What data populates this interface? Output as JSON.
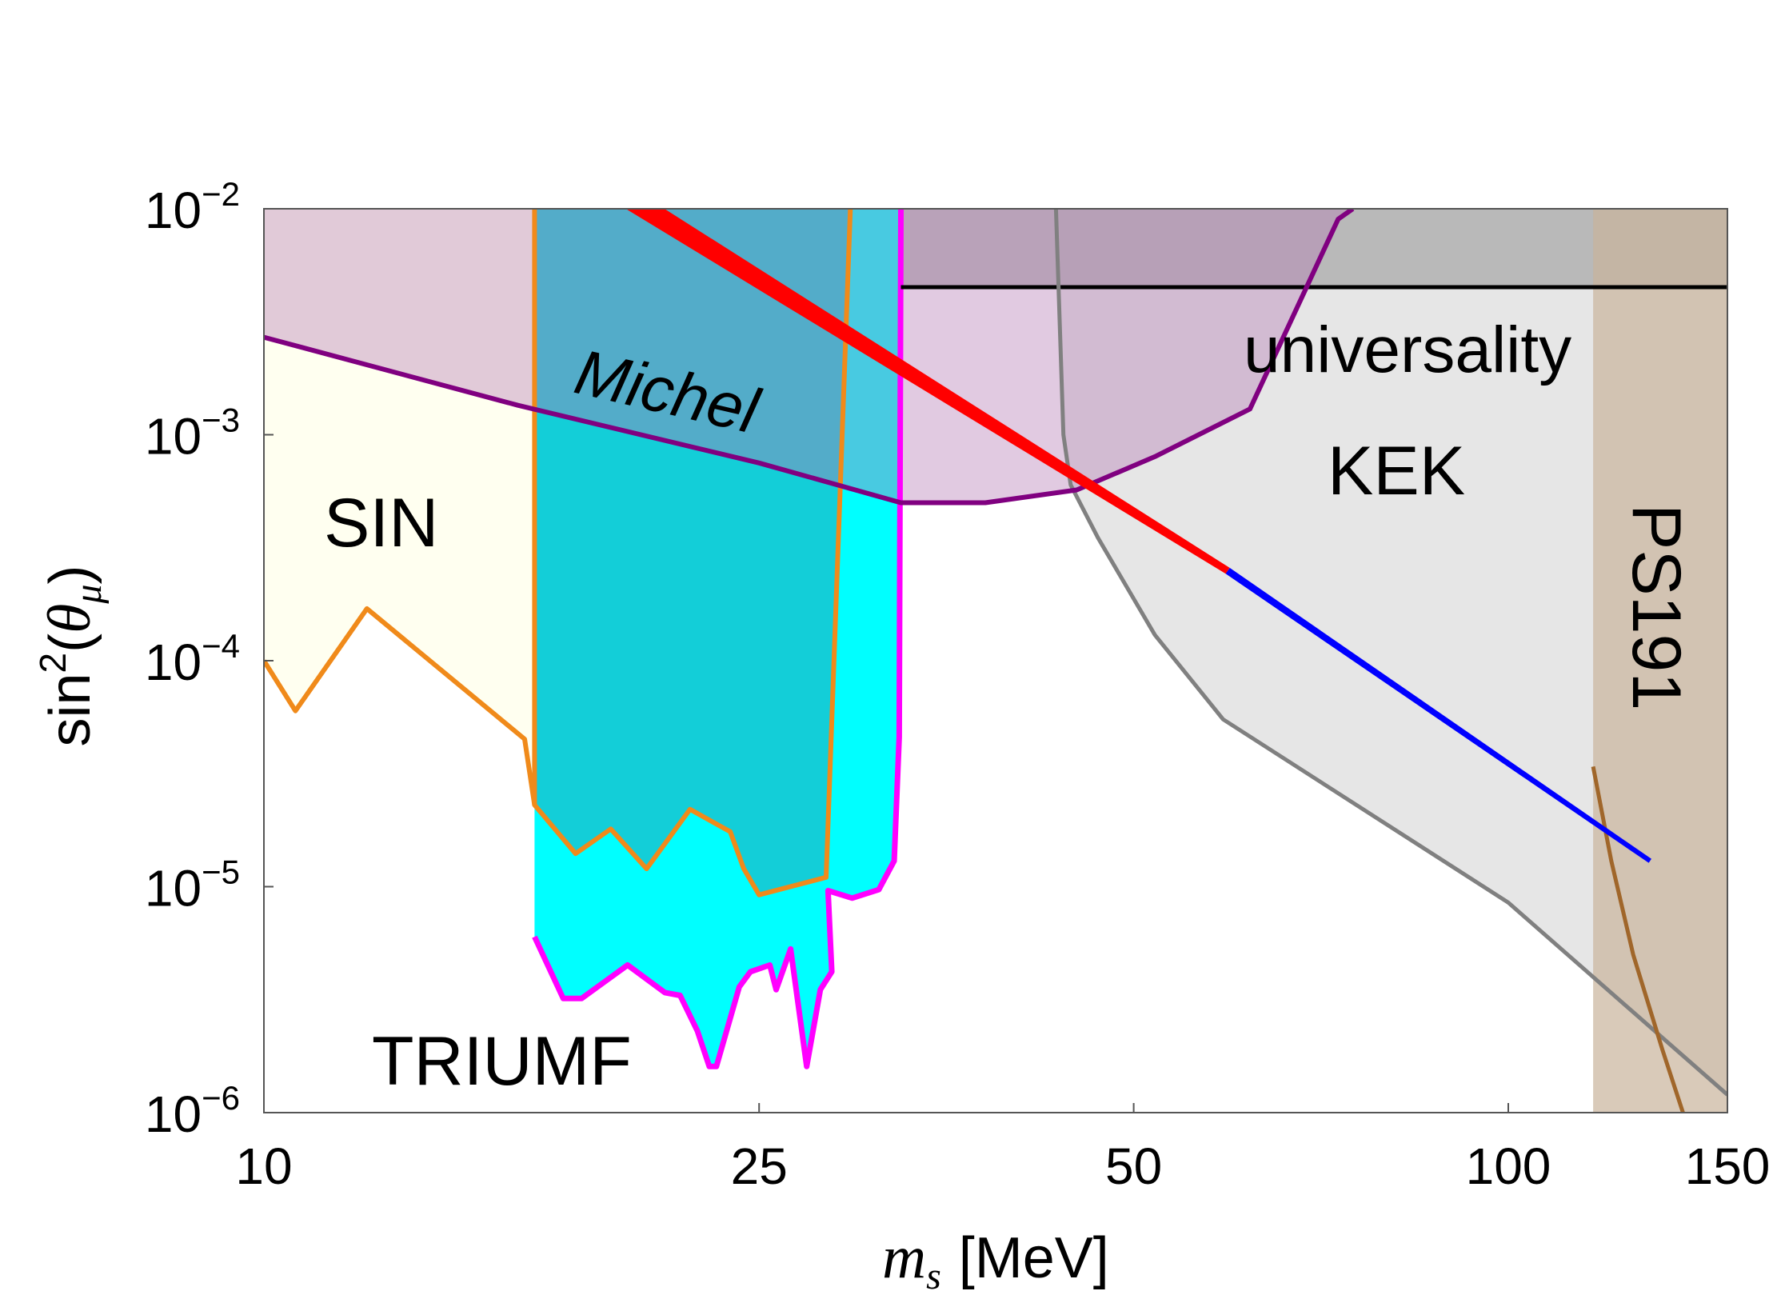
{
  "chart_data": {
    "type": "area",
    "title": "",
    "xlabel": {
      "main": "m",
      "sub": "s",
      "unit": "[MeV]"
    },
    "ylabel": {
      "fn": "sin",
      "exp": "2",
      "theta": "θ",
      "sub": "μ"
    },
    "xscale": "log",
    "yscale": "log",
    "xlim": [
      10,
      150
    ],
    "ylim": [
      1e-06,
      0.01
    ],
    "xticks": [
      {
        "value": 10,
        "label": "10"
      },
      {
        "value": 25,
        "label": "25"
      },
      {
        "value": 50,
        "label": "50"
      },
      {
        "value": 100,
        "label": "100"
      },
      {
        "value": 150,
        "label": "150"
      }
    ],
    "yticks": [
      {
        "value": 1e-06,
        "base": "10",
        "exp": "−6"
      },
      {
        "value": 1e-05,
        "base": "10",
        "exp": "−5"
      },
      {
        "value": 0.0001,
        "base": "10",
        "exp": "−4"
      },
      {
        "value": 0.001,
        "base": "10",
        "exp": "−3"
      },
      {
        "value": 0.01,
        "base": "10",
        "exp": "−2"
      }
    ],
    "regions": [
      {
        "name": "SIN",
        "fill": "#fffff0",
        "stroke": "#f08a1a",
        "boundary": [
          [
            10,
            0.0001
          ],
          [
            10.6,
            6e-05
          ],
          [
            12.1,
            0.00017
          ],
          [
            16.2,
            4.5e-05
          ],
          [
            16.5,
            2.3e-05
          ]
        ]
      },
      {
        "name": "TRIUMF",
        "fill": "#00ffff",
        "stroke": "#ff00ff",
        "boundary": [
          [
            16.5,
            6e-06
          ],
          [
            17.4,
            3.2e-06
          ],
          [
            18,
            3.2e-06
          ],
          [
            19.6,
            4.5e-06
          ],
          [
            21,
            3.4e-06
          ],
          [
            21.6,
            3.3e-06
          ],
          [
            22.3,
            2.3e-06
          ],
          [
            22.8,
            1.6e-06
          ],
          [
            23.1,
            1.6e-06
          ],
          [
            24.1,
            3.6e-06
          ],
          [
            24.6,
            4.2e-06
          ],
          [
            25.5,
            4.5e-06
          ],
          [
            25.8,
            3.5e-06
          ],
          [
            26.5,
            5.3e-06
          ],
          [
            27.3,
            1.6e-06
          ],
          [
            28,
            3.5e-06
          ],
          [
            28.6,
            4.2e-06
          ],
          [
            28.4,
            9.6e-06
          ],
          [
            29.7,
            8.9e-06
          ],
          [
            31.2,
            9.7e-06
          ],
          [
            32.1,
            1.3e-05
          ],
          [
            32.4,
            4.6e-05
          ],
          [
            32.5,
            0.01
          ]
        ]
      },
      {
        "name": "Michel",
        "fill": "#2a93a8",
        "stroke": "#f08a1a",
        "boundary": [
          [
            16.5,
            0.01
          ],
          [
            16.5,
            2.3e-05
          ],
          [
            17.8,
            1.4e-05
          ],
          [
            19,
            1.8e-05
          ],
          [
            20.3,
            1.2e-05
          ],
          [
            22,
            2.2e-05
          ],
          [
            23.7,
            1.75e-05
          ],
          [
            24.3,
            1.2e-05
          ],
          [
            25,
            9.2e-06
          ],
          [
            28.3,
            1.1e-05
          ],
          [
            29.6,
            0.01
          ]
        ]
      },
      {
        "name": "universality",
        "fill": "#b0b0b0",
        "stroke": "#000000",
        "bound_value": 0.0045
      },
      {
        "name": "KEK",
        "fill": "#e6e6e6",
        "stroke": "#808080",
        "boundary": [
          [
            43.3,
            0.01
          ],
          [
            43.9,
            0.001
          ],
          [
            44.5,
            0.0006
          ],
          [
            46.8,
            0.00035
          ],
          [
            52,
            0.00013
          ],
          [
            59,
            5.5e-05
          ],
          [
            100,
            8.5e-06
          ],
          [
            150,
            1.2e-06
          ]
        ]
      },
      {
        "name": "PS191",
        "fill": "#c9b49b",
        "stroke": "#a0662a",
        "bound_value": 117
      },
      {
        "name": "purple-curve",
        "fill": "#b47ab4",
        "stroke": "#800080",
        "boundary": [
          [
            10,
            0.0027
          ],
          [
            16,
            0.00135
          ],
          [
            25,
            0.00075
          ],
          [
            32.5,
            0.0005
          ],
          [
            38,
            0.0005
          ],
          [
            45,
            0.00057
          ],
          [
            52,
            0.0008
          ],
          [
            62,
            0.0013
          ],
          [
            73,
            0.009
          ],
          [
            75,
            0.01
          ]
        ]
      }
    ],
    "lines": [
      {
        "name": "prediction-red",
        "color": "#ff0000",
        "points": [
          [
            19.7,
            0.011
          ],
          [
            59.5,
            0.00025
          ]
        ]
      },
      {
        "name": "prediction-blue",
        "color": "#0000ff",
        "points": [
          [
            59.5,
            0.00025
          ],
          [
            130,
            1.3e-05
          ]
        ]
      }
    ],
    "labels": {
      "Michel": "Michel",
      "SIN": "SIN",
      "TRIUMF": "TRIUMF",
      "universality": "universality",
      "KEK": "KEK",
      "PS191": "PS191"
    }
  }
}
